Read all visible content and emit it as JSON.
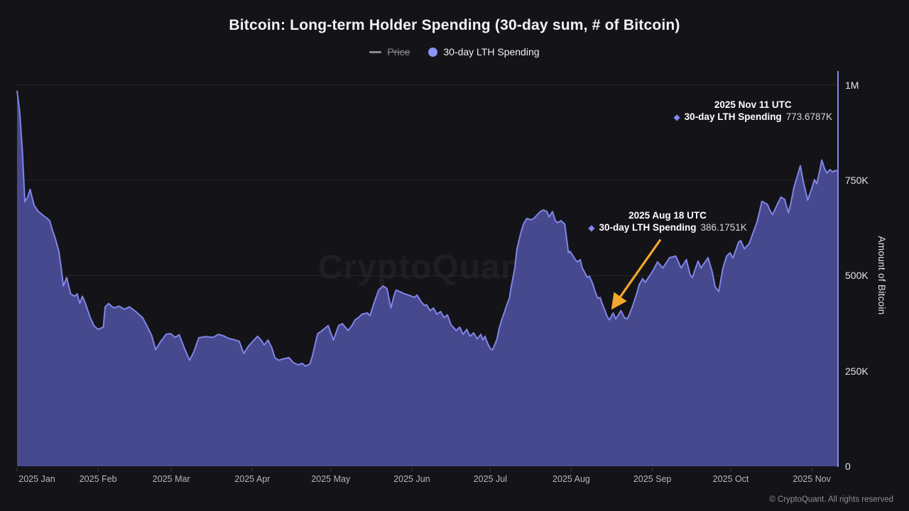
{
  "header": {
    "title": "Bitcoin: Long-term Holder Spending (30-day sum, # of Bitcoin)"
  },
  "legend": {
    "items": [
      {
        "label": "Price",
        "disabled": true,
        "marker": "dash",
        "color": "#8a8a93"
      },
      {
        "label": "30-day LTH Spending",
        "disabled": false,
        "marker": "circle",
        "color": "#8f92f4"
      }
    ]
  },
  "watermark": "CryptoQuant",
  "footer": {
    "copyright": "© CryptoQuant. All rights reserved"
  },
  "tooltips": {
    "nov": {
      "date": "2025 Nov 11 UTC",
      "series": "30-day LTH Spending",
      "value": "773.6787K"
    },
    "aug": {
      "date": "2025 Aug 18 UTC",
      "series": "30-day LTH Spending",
      "value": "386.1751K"
    }
  },
  "chart_data": {
    "type": "area",
    "title": "Bitcoin: Long-term Holder Spending (30-day sum, # of Bitcoin)",
    "xlabel": "",
    "ylabel": "Amount of Bitcoin",
    "y_unit": "thousand BTC (K)",
    "ylim": [
      0,
      1000
    ],
    "grid": "horizontal",
    "legend_position": "top-center",
    "y_ticks": [
      {
        "value": 0,
        "label": "0"
      },
      {
        "value": 250,
        "label": "250K"
      },
      {
        "value": 500,
        "label": "500K"
      },
      {
        "value": 750,
        "label": "750K"
      },
      {
        "value": 1000,
        "label": "1M"
      }
    ],
    "x_range": {
      "start": "2025-01-01",
      "end": "2025-11-11",
      "total_days": 314
    },
    "x_ticks": [
      {
        "day": 0,
        "label": "2025 Jan"
      },
      {
        "day": 31,
        "label": "2025 Feb"
      },
      {
        "day": 59,
        "label": "2025 Mar"
      },
      {
        "day": 90,
        "label": "2025 Apr"
      },
      {
        "day": 120,
        "label": "2025 May"
      },
      {
        "day": 151,
        "label": "2025 Jun"
      },
      {
        "day": 181,
        "label": "2025 Jul"
      },
      {
        "day": 212,
        "label": "2025 Aug"
      },
      {
        "day": 243,
        "label": "2025 Sep"
      },
      {
        "day": 273,
        "label": "2025 Oct"
      },
      {
        "day": 304,
        "label": "2025 Nov"
      }
    ],
    "colors": {
      "background": "#141418",
      "gridline": "#26262c",
      "line": "#8184e8",
      "fill": "#47498e",
      "crosshair": "#8487ea",
      "annotation_arrow": "#f3a72e"
    },
    "annotations": [
      {
        "day": 314,
        "date": "2025 Nov 11 UTC",
        "series": "30-day LTH Spending",
        "value_k": 773.6787
      },
      {
        "day": 229,
        "date": "2025 Aug 18 UTC",
        "series": "30-day LTH Spending",
        "value_k": 386.1751,
        "arrow": true
      }
    ],
    "series": [
      {
        "name": "30-day LTH Spending",
        "unit": "K BTC",
        "points": [
          [
            0,
            985
          ],
          [
            1,
            930
          ],
          [
            2,
            830
          ],
          [
            3,
            694
          ],
          [
            4,
            705
          ],
          [
            5,
            726
          ],
          [
            6.5,
            685
          ],
          [
            8,
            669
          ],
          [
            10,
            658
          ],
          [
            11.5,
            650
          ],
          [
            12.5,
            644
          ],
          [
            13.5,
            620
          ],
          [
            14.5,
            600
          ],
          [
            16,
            564
          ],
          [
            17,
            514
          ],
          [
            17.7,
            473
          ],
          [
            19,
            495
          ],
          [
            20.5,
            452
          ],
          [
            22,
            446
          ],
          [
            23,
            452
          ],
          [
            24,
            427
          ],
          [
            25,
            446
          ],
          [
            26,
            430
          ],
          [
            28,
            390
          ],
          [
            29.5,
            368
          ],
          [
            31,
            359
          ],
          [
            33,
            365
          ],
          [
            33.7,
            418
          ],
          [
            35,
            427
          ],
          [
            37,
            415
          ],
          [
            39,
            420
          ],
          [
            41,
            412
          ],
          [
            43,
            418
          ],
          [
            45,
            408
          ],
          [
            46,
            402
          ],
          [
            48,
            390
          ],
          [
            49.7,
            368
          ],
          [
            51.5,
            343
          ],
          [
            53,
            306
          ],
          [
            55,
            328
          ],
          [
            57,
            346
          ],
          [
            58.7,
            348
          ],
          [
            60.5,
            338
          ],
          [
            62,
            345
          ],
          [
            64,
            310
          ],
          [
            66,
            278
          ],
          [
            67.6,
            300
          ],
          [
            69.5,
            337
          ],
          [
            72,
            340
          ],
          [
            75,
            338
          ],
          [
            77,
            346
          ],
          [
            79,
            342
          ],
          [
            81,
            335
          ],
          [
            83,
            332
          ],
          [
            85,
            328
          ],
          [
            86.7,
            296
          ],
          [
            88.5,
            315
          ],
          [
            90.5,
            330
          ],
          [
            92,
            341
          ],
          [
            93.5,
            330
          ],
          [
            94.5,
            318
          ],
          [
            96,
            331
          ],
          [
            97.5,
            310
          ],
          [
            98.6,
            285
          ],
          [
            100,
            278
          ],
          [
            102,
            282
          ],
          [
            104,
            285
          ],
          [
            105.7,
            272
          ],
          [
            107.5,
            266
          ],
          [
            109,
            270
          ],
          [
            110.3,
            263
          ],
          [
            112,
            268
          ],
          [
            113,
            290
          ],
          [
            114,
            320
          ],
          [
            115,
            348
          ],
          [
            116.5,
            355
          ],
          [
            117.6,
            361
          ],
          [
            119,
            369
          ],
          [
            121,
            331
          ],
          [
            123,
            369
          ],
          [
            124.4,
            374
          ],
          [
            126.6,
            356
          ],
          [
            128,
            368
          ],
          [
            129.3,
            384
          ],
          [
            130.6,
            390
          ],
          [
            132,
            399
          ],
          [
            134,
            402
          ],
          [
            135,
            395
          ],
          [
            136.6,
            430
          ],
          [
            138.3,
            462
          ],
          [
            140,
            473
          ],
          [
            141.5,
            466
          ],
          [
            143,
            415
          ],
          [
            144.3,
            450
          ],
          [
            145,
            462
          ],
          [
            146.4,
            458
          ],
          [
            148.3,
            452
          ],
          [
            150.2,
            448
          ],
          [
            152,
            443
          ],
          [
            153,
            449
          ],
          [
            154.6,
            431
          ],
          [
            156,
            421
          ],
          [
            156.6,
            424
          ],
          [
            158,
            408
          ],
          [
            159.3,
            415
          ],
          [
            160.6,
            399
          ],
          [
            162,
            406
          ],
          [
            163.3,
            390
          ],
          [
            164.6,
            397
          ],
          [
            166,
            371
          ],
          [
            168,
            356
          ],
          [
            169.3,
            365
          ],
          [
            170.6,
            346
          ],
          [
            172,
            359
          ],
          [
            173.3,
            341
          ],
          [
            174.6,
            350
          ],
          [
            176,
            334
          ],
          [
            177.4,
            346
          ],
          [
            178.2,
            331
          ],
          [
            179,
            341
          ],
          [
            180,
            322
          ],
          [
            181,
            309
          ],
          [
            181.8,
            305
          ],
          [
            182.8,
            320
          ],
          [
            183.6,
            334
          ],
          [
            184.4,
            362
          ],
          [
            185.5,
            387
          ],
          [
            186.3,
            402
          ],
          [
            187.2,
            421
          ],
          [
            188.3,
            440
          ],
          [
            189,
            470
          ],
          [
            190.4,
            520
          ],
          [
            191.2,
            570
          ],
          [
            192.6,
            610
          ],
          [
            193.7,
            635
          ],
          [
            195,
            650
          ],
          [
            196.7,
            646
          ],
          [
            198,
            652
          ],
          [
            198.6,
            657
          ],
          [
            200,
            667
          ],
          [
            201.3,
            672
          ],
          [
            202.7,
            668
          ],
          [
            203.5,
            654
          ],
          [
            204.8,
            668
          ],
          [
            205.9,
            644
          ],
          [
            206.8,
            639
          ],
          [
            208,
            644
          ],
          [
            209.5,
            635
          ],
          [
            210.9,
            560
          ],
          [
            211.5,
            564
          ],
          [
            212.7,
            551
          ],
          [
            213.5,
            542
          ],
          [
            214.4,
            536
          ],
          [
            215.4,
            542
          ],
          [
            216.2,
            520
          ],
          [
            217,
            510
          ],
          [
            218.1,
            495
          ],
          [
            218.9,
            499
          ],
          [
            220.3,
            477
          ],
          [
            221.1,
            458
          ],
          [
            222.2,
            440
          ],
          [
            223,
            443
          ],
          [
            223.8,
            427
          ],
          [
            224.9,
            408
          ],
          [
            225.7,
            393
          ],
          [
            226.6,
            384
          ],
          [
            228,
            402
          ],
          [
            229,
            386.2
          ],
          [
            230,
            397
          ],
          [
            231,
            408
          ],
          [
            232.4,
            389
          ],
          [
            233.5,
            387
          ],
          [
            235.3,
            417
          ],
          [
            237,
            452
          ],
          [
            238,
            477
          ],
          [
            239.3,
            492
          ],
          [
            240.2,
            482
          ],
          [
            241.5,
            495
          ],
          [
            242.5,
            505
          ],
          [
            243.3,
            514
          ],
          [
            245,
            536
          ],
          [
            247,
            520
          ],
          [
            249.6,
            547
          ],
          [
            252,
            551
          ],
          [
            254,
            520
          ],
          [
            256,
            542
          ],
          [
            257.5,
            501
          ],
          [
            258.3,
            495
          ],
          [
            260.5,
            538
          ],
          [
            261.6,
            520
          ],
          [
            264.3,
            547
          ],
          [
            265.9,
            510
          ],
          [
            267,
            471
          ],
          [
            268.4,
            458
          ],
          [
            270,
            520
          ],
          [
            271.4,
            551
          ],
          [
            272.7,
            560
          ],
          [
            273.8,
            546
          ],
          [
            276,
            588
          ],
          [
            276.8,
            592
          ],
          [
            278.2,
            570
          ],
          [
            280.1,
            585
          ],
          [
            281.4,
            610
          ],
          [
            283,
            640
          ],
          [
            283.8,
            662
          ],
          [
            284.9,
            695
          ],
          [
            287,
            687
          ],
          [
            287.9,
            672
          ],
          [
            289,
            660
          ],
          [
            291,
            690
          ],
          [
            292.2,
            706
          ],
          [
            293.6,
            700
          ],
          [
            295,
            665
          ],
          [
            296,
            690
          ],
          [
            297.1,
            730
          ],
          [
            298.5,
            762
          ],
          [
            299.6,
            788
          ],
          [
            300.7,
            748
          ],
          [
            302.4,
            698
          ],
          [
            303.8,
            725
          ],
          [
            305,
            752
          ],
          [
            305.9,
            741
          ],
          [
            307,
            775
          ],
          [
            307.8,
            803
          ],
          [
            308.9,
            780
          ],
          [
            309.8,
            769
          ],
          [
            310.9,
            778
          ],
          [
            312,
            772
          ],
          [
            313,
            776
          ],
          [
            314,
            773.6787
          ]
        ]
      }
    ]
  }
}
